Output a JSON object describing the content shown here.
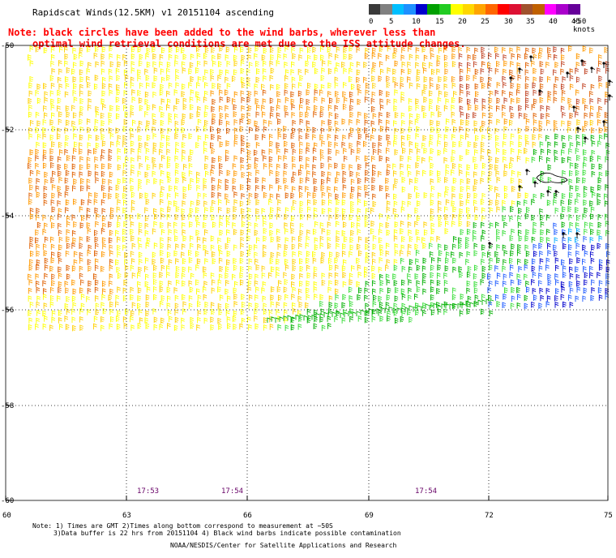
{
  "header": {
    "title": "Rapidscat Winds(12.5KM) v1 20151104 ascending",
    "note_line1": "Note: black circles have been added to the wind barbs, wherever less than",
    "note_line2": "optimal wind retrieval conditions are met due to the ISS attitude changes."
  },
  "legend": {
    "labels": [
      "0",
      "5",
      "10",
      "15",
      "20",
      "25",
      "30",
      "35",
      "40",
      "45",
      ">50 knots"
    ],
    "colors": [
      "#3a3a3a",
      "#808080",
      "#00bfff",
      "#1e90ff",
      "#0000cd",
      "#00a000",
      "#22cc22",
      "#ffff00",
      "#ffd700",
      "#ffa500",
      "#ff6600",
      "#ff0000",
      "#dd1133",
      "#a0522d",
      "#c06000",
      "#ff00ff",
      "#aa00cc",
      "#660099"
    ]
  },
  "axes": {
    "y_labels": [
      "-50",
      "-52",
      "-54",
      "-56",
      "-58",
      "-60"
    ],
    "x_labels": [
      "60",
      "63",
      "66",
      "69",
      "72",
      "75"
    ]
  },
  "times": [
    "17:53",
    "17:54",
    "17:54"
  ],
  "footer": {
    "line1": "Note: 1) Times are GMT 2)Times along bottom correspond to measurement at ~50S",
    "line2": "3)Data buffer is 22 hrs from 20151104 4) Black wind barbs indicate possible contamination",
    "credit": "NOAA/NESDIS/Center for Satellite Applications and Research"
  },
  "colors": {
    "yellow": "#ffff00",
    "gold": "#ffd000",
    "orange": "#ff9900",
    "dark_orange": "#e06000",
    "red_brown": "#c04020",
    "green": "#00b000",
    "light_green": "#33dd33",
    "blue": "#1e5aff",
    "dark_blue": "#0000cc",
    "sky": "#00aaff",
    "black": "#000000",
    "time_purple": "#660066"
  }
}
